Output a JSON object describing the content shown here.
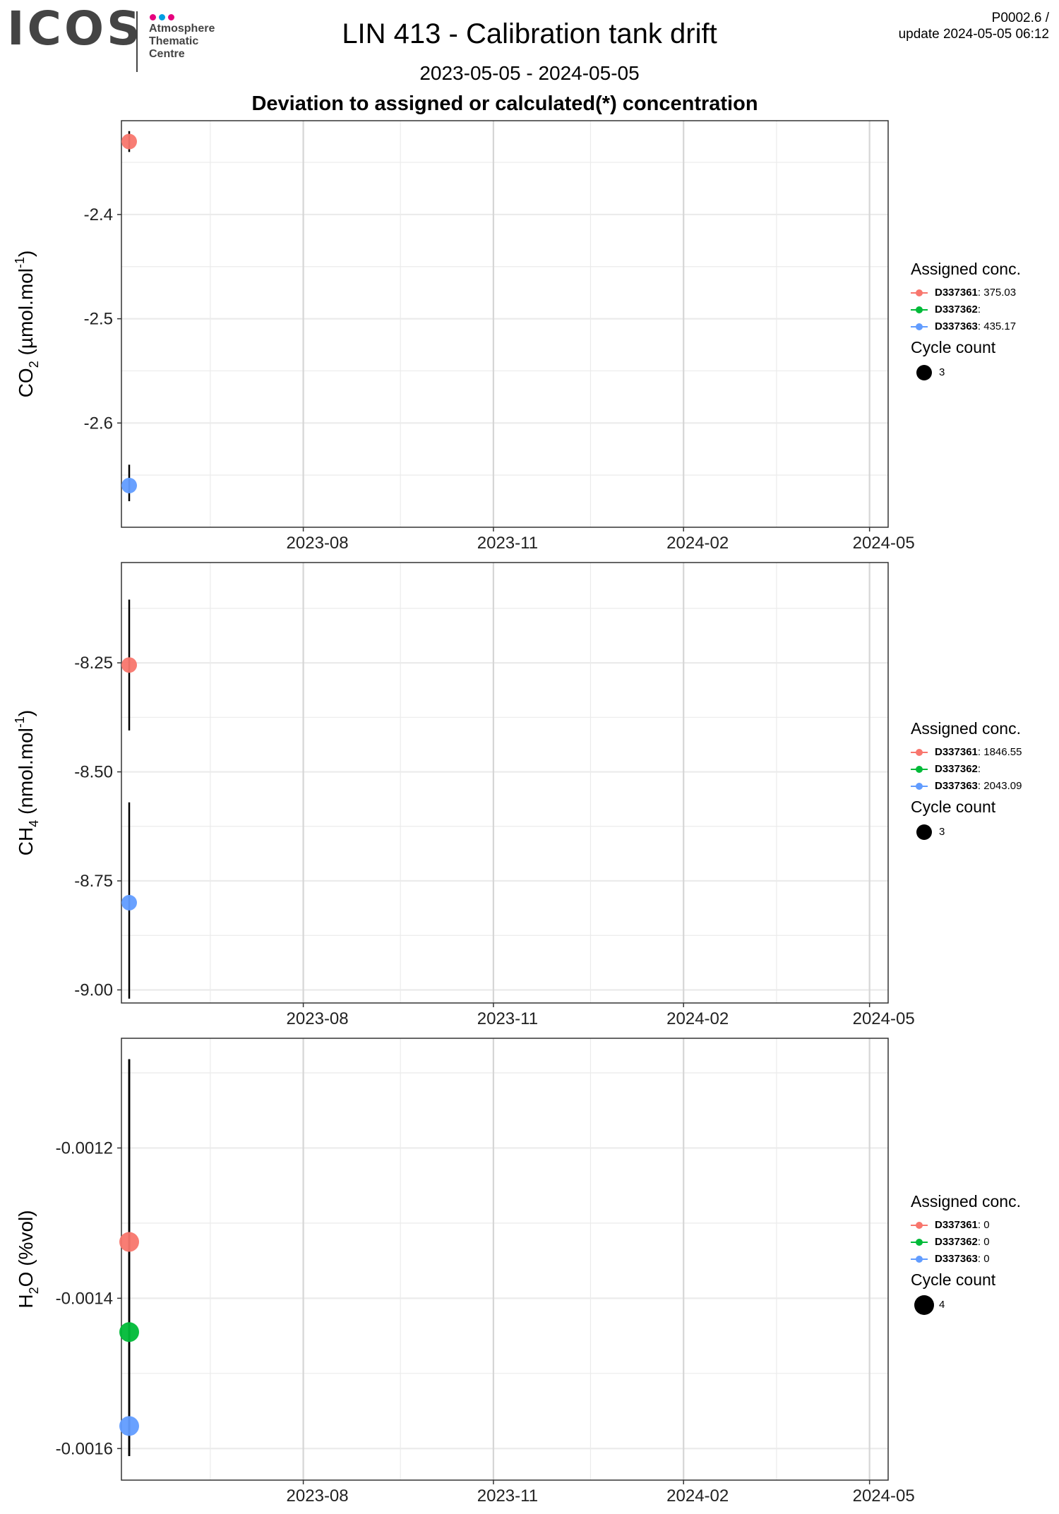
{
  "header": {
    "logo_text": "ICOS",
    "logo_subtitle": [
      "Atmosphere",
      "Thematic",
      "Centre"
    ],
    "logo_dot_colors": [
      "#e6007e",
      "#009ee3",
      "#e6007e"
    ],
    "title": "LIN 413 - Calibration tank drift",
    "subtitle": "2023-05-05 - 2024-05-05",
    "caption": "Deviation to assigned or calculated(*) concentration",
    "meta_line1": "P0002.6 /",
    "meta_line2": "update  2024-05-05 06:12"
  },
  "colors": {
    "D337361": "#F8766D",
    "D337362": "#00BA38",
    "D337363": "#619CFF"
  },
  "chart_data": [
    {
      "type": "scatter",
      "panel": "CO2",
      "ylabel": "CO₂ (µmol.mol⁻¹)",
      "ylabel_parts": [
        "CO",
        "2",
        " (µmol.mol",
        "-1",
        ")"
      ],
      "xlim": [
        "2023-05-05",
        "2024-05-10"
      ],
      "ylim": [
        -2.7,
        -2.31
      ],
      "x_ticks": [
        "2023-08",
        "2023-11",
        "2024-02",
        "2024-05"
      ],
      "y_ticks": [
        -2.4,
        -2.5,
        -2.6
      ],
      "y_tick_labels": [
        "-2.4",
        "-2.5",
        "-2.6"
      ],
      "series": [
        {
          "name": "D337361",
          "color": "#F8766D",
          "points": [
            {
              "x": "2023-05-05",
              "y": -2.33,
              "err_low": -2.34,
              "err_high": -2.32,
              "cycle_count": 3
            }
          ]
        },
        {
          "name": "D337362",
          "color": "#00BA38",
          "points": []
        },
        {
          "name": "D337363",
          "color": "#619CFF",
          "points": [
            {
              "x": "2023-05-05",
              "y": -2.66,
              "err_low": -2.675,
              "err_high": -2.64,
              "cycle_count": 3
            }
          ]
        }
      ],
      "legend": {
        "title": "Assigned conc.",
        "items": [
          {
            "id": "D337361",
            "value": ": 375.03",
            "color": "#F8766D"
          },
          {
            "id": "D337362",
            "value": ":",
            "color": "#00BA38"
          },
          {
            "id": "D337363",
            "value": ": 435.17",
            "color": "#619CFF"
          }
        ],
        "size_title": "Cycle count",
        "size_label": "3",
        "position": "right"
      }
    },
    {
      "type": "scatter",
      "panel": "CH4",
      "ylabel": "CH₄ (nmol.mol⁻¹)",
      "ylabel_parts": [
        "CH",
        "4",
        " (nmol.mol",
        "-1",
        ")"
      ],
      "xlim": [
        "2023-05-05",
        "2024-05-10"
      ],
      "ylim": [
        -9.03,
        -8.02
      ],
      "x_ticks": [
        "2023-08",
        "2023-11",
        "2024-02",
        "2024-05"
      ],
      "y_ticks": [
        -8.25,
        -8.5,
        -8.75,
        -9.0
      ],
      "y_tick_labels": [
        "-8.25",
        "-8.50",
        "-8.75",
        "-9.00"
      ],
      "series": [
        {
          "name": "D337361",
          "color": "#F8766D",
          "points": [
            {
              "x": "2023-05-05",
              "y": -8.255,
              "err_low": -8.405,
              "err_high": -8.105,
              "cycle_count": 3
            }
          ]
        },
        {
          "name": "D337362",
          "color": "#00BA38",
          "points": []
        },
        {
          "name": "D337363",
          "color": "#619CFF",
          "points": [
            {
              "x": "2023-05-05",
              "y": -8.8,
              "err_low": -9.02,
              "err_high": -8.57,
              "cycle_count": 3
            }
          ]
        }
      ],
      "legend": {
        "title": "Assigned conc.",
        "items": [
          {
            "id": "D337361",
            "value": ": 1846.55",
            "color": "#F8766D"
          },
          {
            "id": "D337362",
            "value": ":",
            "color": "#00BA38"
          },
          {
            "id": "D337363",
            "value": ": 2043.09",
            "color": "#619CFF"
          }
        ],
        "size_title": "Cycle count",
        "size_label": "3",
        "position": "right"
      }
    },
    {
      "type": "scatter",
      "panel": "H2O",
      "ylabel": "H₂O (%vol)",
      "ylabel_parts": [
        "H",
        "2",
        "O (%vol)",
        "",
        ""
      ],
      "xlim": [
        "2023-05-05",
        "2024-05-10"
      ],
      "ylim": [
        -0.001642,
        -0.001054
      ],
      "x_ticks": [
        "2023-08",
        "2023-11",
        "2024-02",
        "2024-05"
      ],
      "y_ticks": [
        -0.0012,
        -0.0014,
        -0.0016
      ],
      "y_tick_labels": [
        "-0.0012",
        "-0.0014",
        "-0.0016"
      ],
      "series": [
        {
          "name": "D337361",
          "color": "#F8766D",
          "points": [
            {
              "x": "2023-05-05",
              "y": -0.001325,
              "err_low": -0.00161,
              "err_high": -0.001082,
              "cycle_count": 4
            }
          ]
        },
        {
          "name": "D337362",
          "color": "#00BA38",
          "points": [
            {
              "x": "2023-05-05",
              "y": -0.001445,
              "err_low": -0.00161,
              "err_high": -0.001082,
              "cycle_count": 4
            }
          ]
        },
        {
          "name": "D337363",
          "color": "#619CFF",
          "points": [
            {
              "x": "2023-05-05",
              "y": -0.00157,
              "err_low": -0.00161,
              "err_high": -0.001082,
              "cycle_count": 4
            }
          ]
        }
      ],
      "legend": {
        "title": "Assigned conc.",
        "items": [
          {
            "id": "D337361",
            "value": ": 0",
            "color": "#F8766D"
          },
          {
            "id": "D337362",
            "value": ": 0",
            "color": "#00BA38"
          },
          {
            "id": "D337363",
            "value": ": 0",
            "color": "#619CFF"
          }
        ],
        "size_title": "Cycle count",
        "size_label": "4",
        "position": "right"
      }
    }
  ]
}
